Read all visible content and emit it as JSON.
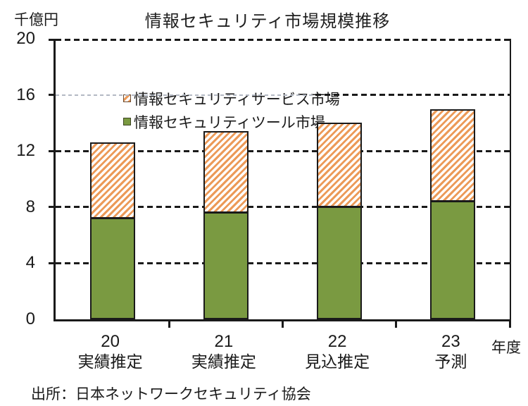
{
  "title": "情報セキュリティ市場規模推移",
  "y_unit": "千億円",
  "x_unit": "年度",
  "source": "出所：日本ネットワークセキュリティ協会",
  "legend": {
    "items": [
      {
        "label": "情報セキュリティサービス市場",
        "series": "service",
        "swatch": "orange-diagonal-hatch"
      },
      {
        "label": "情報セキュリティツール市場",
        "series": "tool",
        "swatch": "solid-green"
      }
    ]
  },
  "colors": {
    "tool_green": "#7A9A41",
    "service_hatch_orange": "#EC9A58",
    "axis_black": "#1A1A1A",
    "grid_light_gray": "#B3B9C4",
    "swatch_service_border": "#6B4A2E",
    "swatch_tool_border": "#3C4522"
  },
  "chart_data": {
    "type": "bar",
    "stacked": true,
    "title": "情報セキュリティ市場規模推移",
    "ylabel": "千億円",
    "xlabel": "年度",
    "ylim": [
      0,
      20
    ],
    "yticks": [
      0,
      4,
      8,
      12,
      16,
      20
    ],
    "grid": "horizontal-dashed",
    "legend_position": "top-left-inside",
    "categories": [
      {
        "year": "20",
        "note": "実績推定"
      },
      {
        "year": "21",
        "note": "実績推定"
      },
      {
        "year": "22",
        "note": "見込推定"
      },
      {
        "year": "23",
        "note": "予測"
      }
    ],
    "series": [
      {
        "name": "情報セキュリティツール市場",
        "style": "solid-green",
        "values": [
          7.2,
          7.6,
          8.0,
          8.4
        ]
      },
      {
        "name": "情報セキュリティサービス市場",
        "style": "orange-diagonal-hatch",
        "values": [
          5.4,
          5.8,
          6.0,
          6.6
        ]
      }
    ],
    "totals": [
      12.6,
      13.4,
      14.0,
      15.0
    ]
  }
}
